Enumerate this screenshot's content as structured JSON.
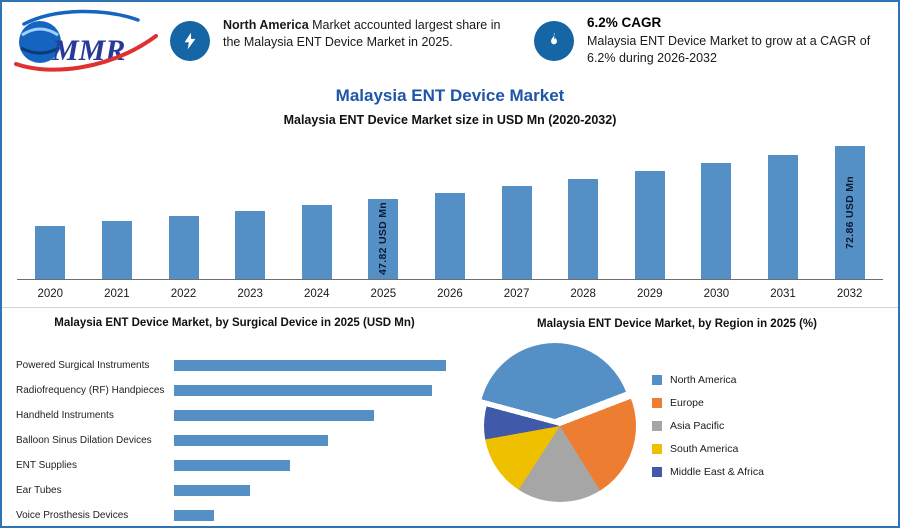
{
  "logo": {
    "text": "MMR"
  },
  "header": {
    "callout1": {
      "bold": "North America",
      "rest": " Market accounted largest share in the Malaysia ENT Device Market in 2025."
    },
    "callout2": {
      "title": "6.2% CAGR",
      "text": "Malaysia ENT Device Market to grow at a CAGR of 6.2% during 2026-2032"
    }
  },
  "title": "Malaysia ENT Device Market",
  "subtitle": "Malaysia ENT Device Market size in USD Mn (2020-2032)",
  "colors": {
    "border_blue": "#2e74b5",
    "title_blue": "#1e56a8",
    "icon_circle_blue": "#1665a5",
    "bar_blue": "#5490c6"
  },
  "chart_data": [
    {
      "type": "bar",
      "title": "Malaysia ENT Device Market size in USD Mn (2020-2032)",
      "categories": [
        "2020",
        "2021",
        "2022",
        "2023",
        "2024",
        "2025",
        "2026",
        "2027",
        "2028",
        "2029",
        "2030",
        "2031",
        "2032"
      ],
      "values": [
        35.4,
        37.6,
        39.9,
        42.4,
        45.0,
        47.82,
        50.78,
        53.93,
        57.27,
        60.82,
        64.6,
        68.6,
        72.86
      ],
      "data_labels": [
        {
          "category": "2025",
          "label": "47.82 USD Mn"
        },
        {
          "category": "2032",
          "label": "72.86 USD Mn"
        }
      ],
      "bar_color": "#5490c6",
      "xlabel": "",
      "ylabel": "USD Mn",
      "grid": false
    },
    {
      "type": "bar",
      "orientation": "horizontal",
      "title": "Malaysia ENT Device Market, by Surgical Device in 2025 (USD Mn)",
      "categories": [
        "Powered Surgical Instruments",
        "Radiofrequency (RF) Handpieces",
        "Handheld Instruments",
        "Balloon Sinus Dilation Devices",
        "ENT Supplies",
        "Ear Tubes",
        "Voice Prosthesis Devices"
      ],
      "values": [
        13.6,
        12.9,
        10.0,
        7.7,
        5.8,
        3.8,
        2.0
      ],
      "bar_color": "#5490c6",
      "grid": false
    },
    {
      "type": "pie",
      "title": "Malaysia ENT Device Market, by Region in 2025 (%)",
      "labels": [
        "North America",
        "Europe",
        "Asia Pacific",
        "South America",
        "Middle East & Africa"
      ],
      "values": [
        40,
        22,
        18,
        13,
        7
      ],
      "colors": [
        "#5490c6",
        "#ED7D31",
        "#A6A6A6",
        "#EFC000",
        "#4059A8"
      ],
      "start_angle_deg": -75,
      "legend_position": "right",
      "exploded_slice": "North America"
    }
  ]
}
